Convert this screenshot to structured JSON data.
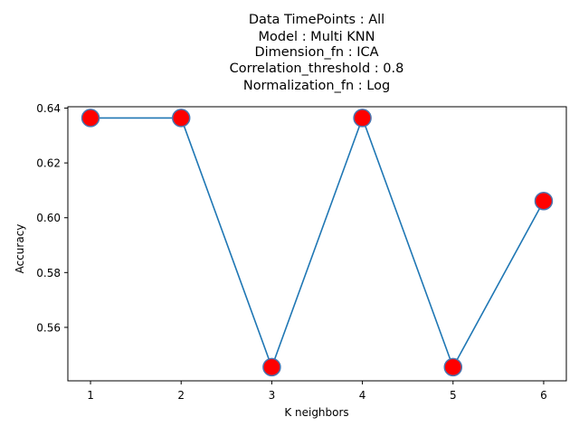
{
  "chart_data": {
    "type": "line",
    "title_lines": [
      "Data TimePoints : All",
      "Model : Multi KNN",
      "Dimension_fn : ICA",
      "Correlation_threshold : 0.8",
      "Normalization_fn : Log"
    ],
    "xlabel": "K neighbors",
    "ylabel": "Accuracy",
    "x": [
      1,
      2,
      3,
      4,
      5,
      6
    ],
    "xticks": [
      "1",
      "2",
      "3",
      "4",
      "5",
      "6"
    ],
    "yticks": [
      "0.56",
      "0.58",
      "0.60",
      "0.62",
      "0.64"
    ],
    "xlim": [
      0.75,
      6.25
    ],
    "ylim": [
      0.5405,
      0.6405
    ],
    "grid": false,
    "series": [
      {
        "values": [
          0.6364,
          0.6364,
          0.5455,
          0.6364,
          0.5455,
          0.6061
        ],
        "line_color": "#1f77b4",
        "marker_face": "#ff0000",
        "marker_edge": "#4a75b0"
      }
    ]
  }
}
